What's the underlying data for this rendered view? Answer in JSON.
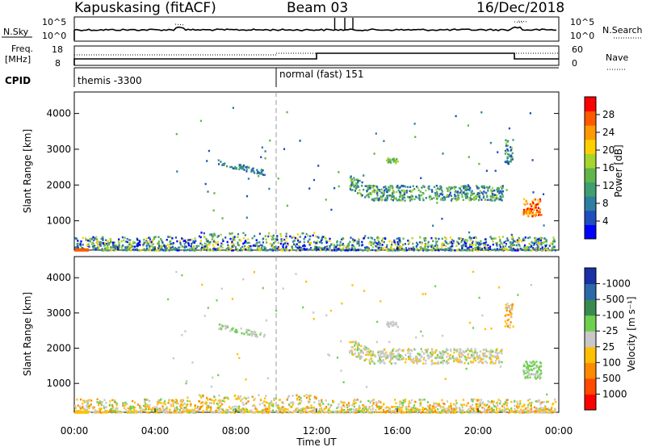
{
  "header": {
    "title": "Kapuskasing (fitACF)",
    "beam": "Beam 03",
    "date": "16/Dec/2018"
  },
  "strip_panels": {
    "noise": {
      "left_label": "N.Sky",
      "right_label": "N.Search",
      "left_ticks": [
        "10^5",
        "10^0"
      ],
      "right_ticks": [
        "10^5",
        "10^0"
      ]
    },
    "freq": {
      "left_label_line1": "Freq.",
      "left_label_line2": "[MHz]",
      "right_label": "Nave",
      "left_ticks": [
        "18",
        "8"
      ],
      "right_ticks": [
        "60",
        "0"
      ]
    },
    "cpid": {
      "label": "CPID",
      "modes": [
        "themis -3300",
        "normal (fast) 151"
      ],
      "mode_start_hours": [
        0,
        10
      ]
    }
  },
  "time_axis": {
    "label": "Time UT",
    "ticks": [
      "00:00",
      "04:00",
      "08:00",
      "12:00",
      "16:00",
      "20:00",
      "00:00"
    ],
    "range_hours": [
      0,
      24
    ]
  },
  "chart_data": [
    {
      "type": "heatmap",
      "title": "Power",
      "ylabel": "Slant Range [km]",
      "yticks": [
        "1000",
        "2000",
        "3000",
        "4000"
      ],
      "ylim": [
        180,
        4600
      ],
      "xlim": [
        0,
        24
      ],
      "colorbar": {
        "label": "Power [dB]",
        "range": [
          0,
          30
        ],
        "ticks": [
          "4",
          "8",
          "12",
          "16",
          "20",
          "24",
          "28"
        ],
        "colors": [
          "#0000ff",
          "#1f4fbf",
          "#2e7fa0",
          "#3f9f70",
          "#62b54a",
          "#a6d52e",
          "#ffd000",
          "#ff9a00",
          "#ff5a00",
          "#ff0000"
        ]
      }
    },
    {
      "type": "heatmap",
      "title": "Velocity",
      "ylabel": "Slant Range [km]",
      "yticks": [
        "1000",
        "2000",
        "3000",
        "4000"
      ],
      "ylim": [
        180,
        4600
      ],
      "xlim": [
        0,
        24
      ],
      "colorbar": {
        "label": "Velocity [m s⁻¹]",
        "ticks": [
          "1000",
          "500",
          "100",
          "25",
          "-25",
          "-100",
          "-500",
          "-1000"
        ],
        "colors": [
          "#1a2fa8",
          "#2a6aa8",
          "#3a8a50",
          "#6fd04f",
          "#c8c8c8",
          "#ffc000",
          "#ff8a00",
          "#ff4a00",
          "#ff0000"
        ]
      }
    }
  ]
}
